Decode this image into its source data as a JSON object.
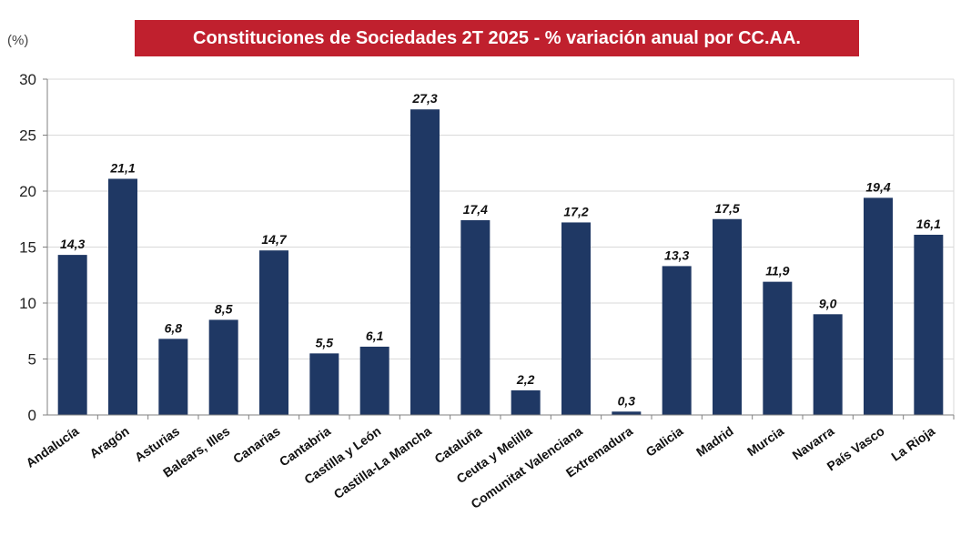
{
  "chart_data": {
    "type": "bar",
    "title": "Constituciones de Sociedades 2T 2025 - % variación anual por CC.AA.",
    "ylabel": "(%)",
    "xlabel": "",
    "ylim": [
      0,
      30
    ],
    "yticks": [
      "0",
      "5",
      "10",
      "15",
      "20",
      "25",
      "30"
    ],
    "grid": true,
    "bar_color": "#1f3864",
    "title_bg_color": "#c0202e",
    "categories": [
      "Andalucía",
      "Aragón",
      "Asturias",
      "Balears, Illes",
      "Canarias",
      "Cantabria",
      "Castilla y León",
      "Castilla-La Mancha",
      "Cataluña",
      "Ceuta y Melilla",
      "Comunitat Valenciana",
      "Extremadura",
      "Galicia",
      "Madrid",
      "Murcia",
      "Navarra",
      "País Vasco",
      "La Rioja"
    ],
    "values": [
      14.3,
      21.1,
      6.8,
      8.5,
      14.7,
      5.5,
      6.1,
      27.3,
      17.4,
      2.2,
      17.2,
      0.3,
      13.3,
      17.5,
      11.9,
      9.0,
      19.4,
      16.1
    ],
    "value_labels": [
      "14,3",
      "21,1",
      "6,8",
      "8,5",
      "14,7",
      "5,5",
      "6,1",
      "27,3",
      "17,4",
      "2,2",
      "17,2",
      "0,3",
      "13,3",
      "17,5",
      "11,9",
      "9,0",
      "19,4",
      "16,1"
    ]
  }
}
